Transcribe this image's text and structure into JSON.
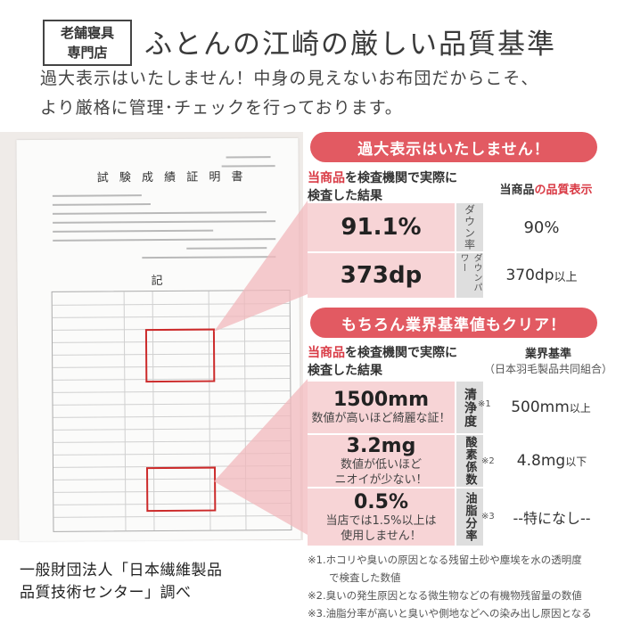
{
  "header": {
    "badge_line1": "老舗寝具",
    "badge_line2": "専門店",
    "title": "ふとんの江崎の厳しい品質基準",
    "intro_line1": "過大表示はいたしません！中身の見えないお布団だからこそ、",
    "intro_line2": "より厳格に管理･チェックを行っております。"
  },
  "document": {
    "title": "試 験 成 績 証 明 書",
    "ki": "記",
    "caption_line1": "一般財団法人「日本繊維製品",
    "caption_line2": "品質技術センター」調べ"
  },
  "section1": {
    "pill": "過大表示はいたしません！",
    "left_hl": "当商品",
    "left_line1_rest": "を検査機関で実際に",
    "left_line2": "検査した結果",
    "right_prefix": "当商品",
    "right_hl": "の品質表示",
    "rows": [
      {
        "measured": "91.1%",
        "label": "ダウン率",
        "declared": "90%",
        "declared_suffix": ""
      },
      {
        "measured": "373dp",
        "label": "ダウンパワー",
        "declared": "370dp",
        "declared_suffix": "以上"
      }
    ]
  },
  "section2": {
    "pill": "もちろん業界基準値もクリア！",
    "left_hl": "当商品",
    "left_line1_rest": "を検査機関で実際に",
    "left_line2": "検査した結果",
    "right_title": "業界基準",
    "right_sub": "（日本羽毛製品共同組合）",
    "rows": [
      {
        "measured": "1500mm",
        "note1": "数値が高いほど綺麗な証！",
        "note2": "",
        "label": "清浄度",
        "mark": "※1",
        "standard": "500mm",
        "standard_suffix": "以上"
      },
      {
        "measured": "3.2mg",
        "note1": "数値が低いほど",
        "note2": "ニオイが少ない！",
        "label": "酸素係数",
        "mark": "※2",
        "standard": "4.8mg",
        "standard_suffix": "以下"
      },
      {
        "measured": "0.5%",
        "note1": "当店では1.5%以上は",
        "note2": "使用しません！",
        "label": "油脂分率",
        "mark": "※3",
        "standard": "--特になし--",
        "standard_suffix": ""
      }
    ]
  },
  "footnotes": {
    "n1a": "※1.ホコリや臭いの原因となる残留土砂や塵埃を水の透明度",
    "n1b": "で検査した数値",
    "n2": "※2.臭いの発生原因となる微生物などの有機物残留量の数値",
    "n3": "※3.油脂分率が高いと臭いや側地などへの染み出し原因となる"
  },
  "colors": {
    "accent_red": "#e25a62",
    "pink_cell": "#f7d4d6",
    "grey_cell": "#dedede",
    "doc_box_red": "#cc2a2a"
  }
}
